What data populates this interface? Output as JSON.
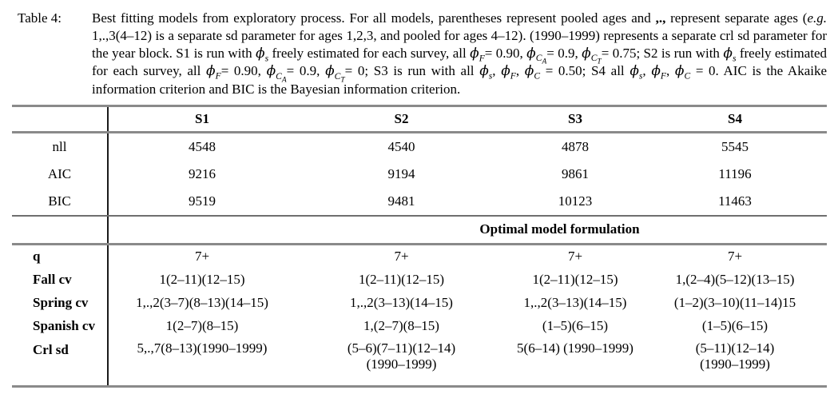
{
  "caption": {
    "label": "Table 4:",
    "segments": [
      {
        "text": "Best fitting models from exploratory process. For all models, parentheses represent pooled ages and "
      },
      {
        "text": ",.,",
        "bold": true
      },
      {
        "text": " represent separate ages ("
      },
      {
        "text": "e.g.",
        "italic": true
      },
      {
        "text": " 1,.,3(4–12) is a separate sd parameter for ages 1,2,3, and pooled for ages 4–12). (1990–1999) represents a separate crl sd parameter for the year block. S1 is run with "
      },
      {
        "phi": "s"
      },
      {
        "text": " freely estimated for each survey, all "
      },
      {
        "phi": "F"
      },
      {
        "text": "= 0.90, "
      },
      {
        "phi": "C",
        "sub2": "A"
      },
      {
        "text": "= 0.9, "
      },
      {
        "phi": "C",
        "sub2": "T"
      },
      {
        "text": "= 0.75; S2 is run with "
      },
      {
        "phi": "s"
      },
      {
        "text": " freely estimated for each survey, all "
      },
      {
        "phi": "F"
      },
      {
        "text": "= 0.90, "
      },
      {
        "phi": "C",
        "sub2": "A"
      },
      {
        "text": "= 0.9, "
      },
      {
        "phi": "C",
        "sub2": "T"
      },
      {
        "text": "= 0; S3 is run with all "
      },
      {
        "phi": "s"
      },
      {
        "text": ", "
      },
      {
        "phi": "F"
      },
      {
        "text": ",  "
      },
      {
        "phi": "C"
      },
      {
        "text": " = 0.50; S4 all "
      },
      {
        "phi": "s"
      },
      {
        "text": ", "
      },
      {
        "phi": "F"
      },
      {
        "text": ",  "
      },
      {
        "phi": "C"
      },
      {
        "text": " = 0. AIC is the Akaike information criterion and BIC is the Bayesian information criterion."
      }
    ]
  },
  "table": {
    "col_headers": [
      "S1",
      "S2",
      "S3",
      "S4"
    ],
    "stats_rows": [
      {
        "label": "nll",
        "values": [
          "4548",
          "4540",
          "4878",
          "5545"
        ]
      },
      {
        "label": "AIC",
        "values": [
          "9216",
          "9194",
          "9861",
          "11196"
        ]
      },
      {
        "label": "BIC",
        "values": [
          "9519",
          "9481",
          "10123",
          "11463"
        ]
      }
    ],
    "section_header": "Optimal model formulation",
    "model_rows": [
      {
        "label": "q",
        "values": [
          "7+",
          "7+",
          "7+",
          "7+"
        ]
      },
      {
        "label": "Fall cv",
        "values": [
          "1(2–11)(12–15)",
          "1(2–11)(12–15)",
          "1(2–11)(12–15)",
          "1,(2–4)(5–12)(13–15)"
        ]
      },
      {
        "label": "Spring cv",
        "values": [
          "1,.,2(3–7)(8–13)(14–15)",
          "1,.,2(3–13)(14–15)",
          "1,.,2(3–13)(14–15)",
          "(1–2)(3–10)(11–14)15"
        ]
      },
      {
        "label": "Spanish cv",
        "values": [
          "1(2–7)(8–15)",
          "1,(2–7)(8–15)",
          "(1–5)(6–15)",
          "(1–5)(6–15)"
        ]
      },
      {
        "label": "Crl sd",
        "values": [
          "5,.,7(8–13)(1990–1999)",
          "(5–6)(7–11)(12–14)\n(1990–1999)",
          "5(6–14) (1990–1999)",
          "(5–11)(12–14)\n(1990–1999)"
        ]
      }
    ]
  },
  "colors": {
    "rule_gray": "#8a8a8a",
    "divider_black": "#1a1a1a",
    "text": "#000000",
    "background": "#ffffff"
  }
}
